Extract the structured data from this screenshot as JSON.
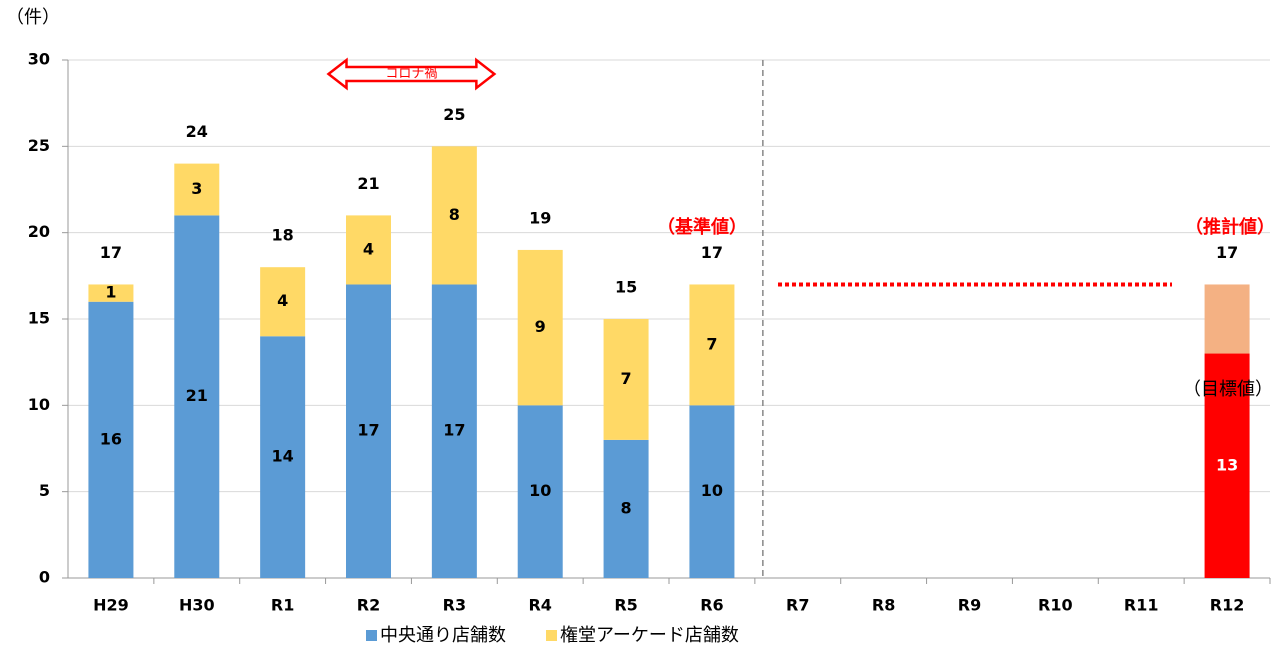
{
  "chart_data": {
    "type": "stacked_bar",
    "y_label": "（件）",
    "categories": [
      "H29",
      "H30",
      "R1",
      "R2",
      "R3",
      "R4",
      "R5",
      "R6",
      "R7",
      "R8",
      "R9",
      "R10",
      "R11",
      "R12"
    ],
    "series": [
      {
        "name": "中央通り店舗数",
        "color": "#5b9bd5",
        "values": [
          16,
          21,
          14,
          17,
          17,
          10,
          8,
          10,
          null,
          null,
          null,
          null,
          null,
          13
        ],
        "colors": [
          "#5b9bd5",
          "#5b9bd5",
          "#5b9bd5",
          "#5b9bd5",
          "#5b9bd5",
          "#5b9bd5",
          "#5b9bd5",
          "#5b9bd5",
          "#5b9bd5",
          "#5b9bd5",
          "#5b9bd5",
          "#5b9bd5",
          "#5b9bd5",
          "#ff0000"
        ],
        "label_colors": [
          "#000000",
          "#000000",
          "#000000",
          "#000000",
          "#000000",
          "#000000",
          "#000000",
          "#000000",
          "#000000",
          "#000000",
          "#000000",
          "#000000",
          "#000000",
          "#ffffff"
        ]
      },
      {
        "name": "権堂アーケード店舗数",
        "color": "#ffd966",
        "values": [
          1,
          3,
          4,
          4,
          8,
          9,
          7,
          7,
          null,
          null,
          null,
          null,
          null,
          4
        ],
        "value_labels": [
          "1",
          "3",
          "4",
          "4",
          "8",
          "9",
          "7",
          "7",
          null,
          null,
          null,
          null,
          null,
          null
        ],
        "colors": [
          "#ffd966",
          "#ffd966",
          "#ffd966",
          "#ffd966",
          "#ffd966",
          "#ffd966",
          "#ffd966",
          "#ffd966",
          "#ffd966",
          "#ffd966",
          "#ffd966",
          "#ffd966",
          "#ffd966",
          "#f4b183"
        ]
      }
    ],
    "totals": [
      17,
      24,
      18,
      21,
      25,
      19,
      15,
      17,
      null,
      null,
      null,
      null,
      null,
      17
    ],
    "annotations": [
      "コロナ禍",
      "（基準値）",
      "（推計値）",
      "（目標値）"
    ],
    "reference_line": {
      "value": 17,
      "color": "#ff0000"
    },
    "ylim": [
      0,
      30
    ],
    "yticks": [
      0,
      5,
      10,
      15,
      20,
      25,
      30
    ],
    "grid": true,
    "legend": "bottom"
  }
}
